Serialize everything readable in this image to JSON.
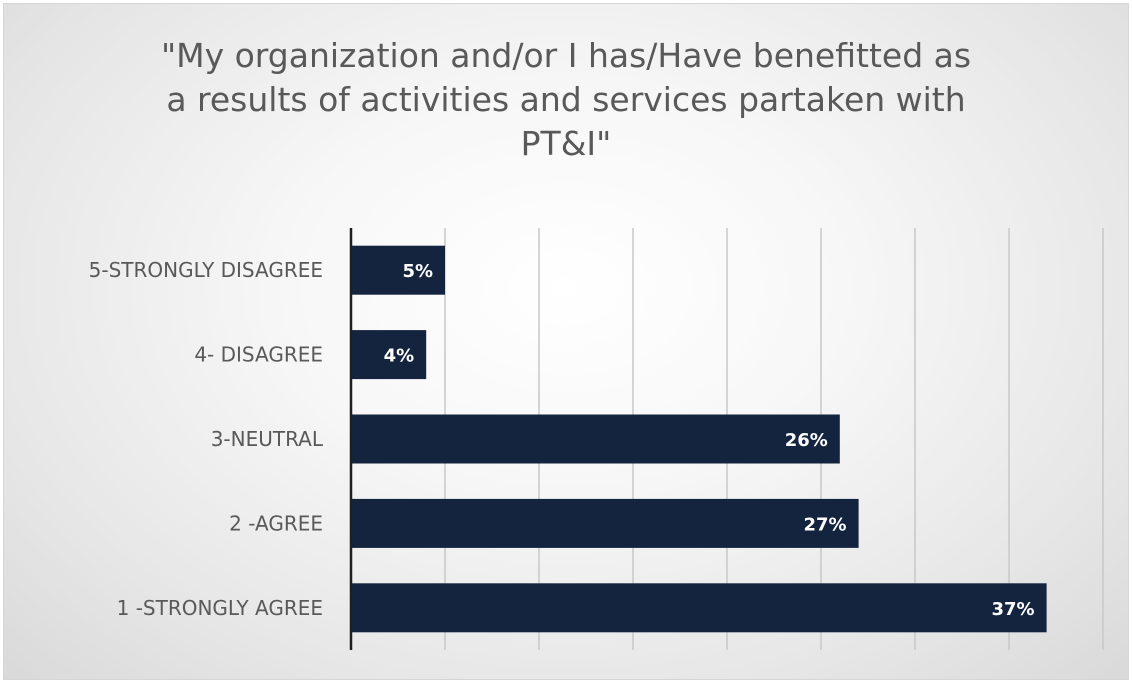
{
  "chart_data": {
    "type": "bar",
    "orientation": "horizontal",
    "title_lines": [
      "\"My organization and/or I has/Have benefitted as",
      "a results of activities and services partaken with",
      "PT&I\""
    ],
    "categories": [
      "5-STRONGLY DISAGREE",
      "4- DISAGREE",
      "3-NEUTRAL",
      "2 -AGREE",
      "1 -STRONGLY AGREE"
    ],
    "values": [
      5,
      4,
      26,
      27,
      37
    ],
    "data_labels": [
      "5%",
      "4%",
      "26%",
      "27%",
      "37%"
    ],
    "value_unit": "%",
    "xlim": [
      0,
      40
    ],
    "grid": true,
    "legend": "none",
    "bar_color": "#14243f",
    "label_color": "#ffffff",
    "text_color": "#595959"
  }
}
